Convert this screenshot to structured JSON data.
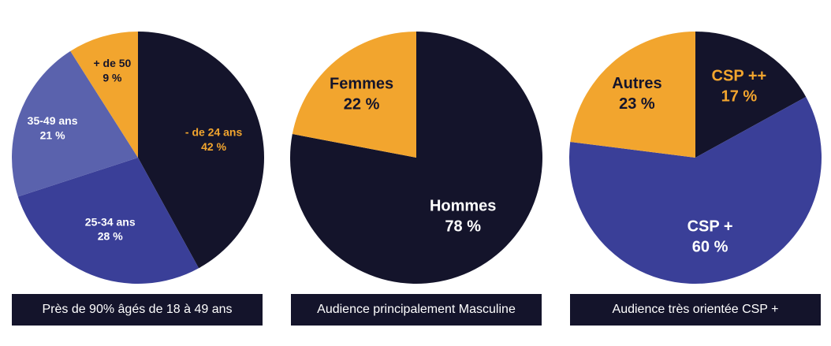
{
  "colors": {
    "navy": "#14142b",
    "blue": "#3a3f98",
    "periwinkle": "#5a62ad",
    "orange": "#f2a52e",
    "white": "#ffffff"
  },
  "chart_data": [
    {
      "type": "pie",
      "caption": "Près de 90% âgés de 18 à 49 ans",
      "slices": [
        {
          "label": "- de 24 ans",
          "value": 42,
          "value_text": "42 %",
          "color": "#14142b",
          "text_color": "#f2a52e"
        },
        {
          "label": "25-34 ans",
          "value": 28,
          "value_text": "28 %",
          "color": "#3a3f98",
          "text_color": "#ffffff"
        },
        {
          "label": "35-49 ans",
          "value": 21,
          "value_text": "21 %",
          "color": "#5a62ad",
          "text_color": "#ffffff"
        },
        {
          "label": "+ de 50",
          "value": 9,
          "value_text": "9 %",
          "color": "#f2a52e",
          "text_color": "#14142b"
        }
      ]
    },
    {
      "type": "pie",
      "caption": "Audience principalement Masculine",
      "slices": [
        {
          "label": "Hommes",
          "value": 78,
          "value_text": "78 %",
          "color": "#14142b",
          "text_color": "#ffffff"
        },
        {
          "label": "Femmes",
          "value": 22,
          "value_text": "22 %",
          "color": "#f2a52e",
          "text_color": "#14142b"
        }
      ]
    },
    {
      "type": "pie",
      "caption": "Audience très orientée CSP +",
      "slices": [
        {
          "label": "CSP ++",
          "value": 17,
          "value_text": "17 %",
          "color": "#14142b",
          "text_color": "#f2a52e"
        },
        {
          "label": "CSP +",
          "value": 60,
          "value_text": "60 %",
          "color": "#3a3f98",
          "text_color": "#ffffff"
        },
        {
          "label": "Autres",
          "value": 23,
          "value_text": "23 %",
          "color": "#f2a52e",
          "text_color": "#14142b"
        }
      ]
    }
  ]
}
